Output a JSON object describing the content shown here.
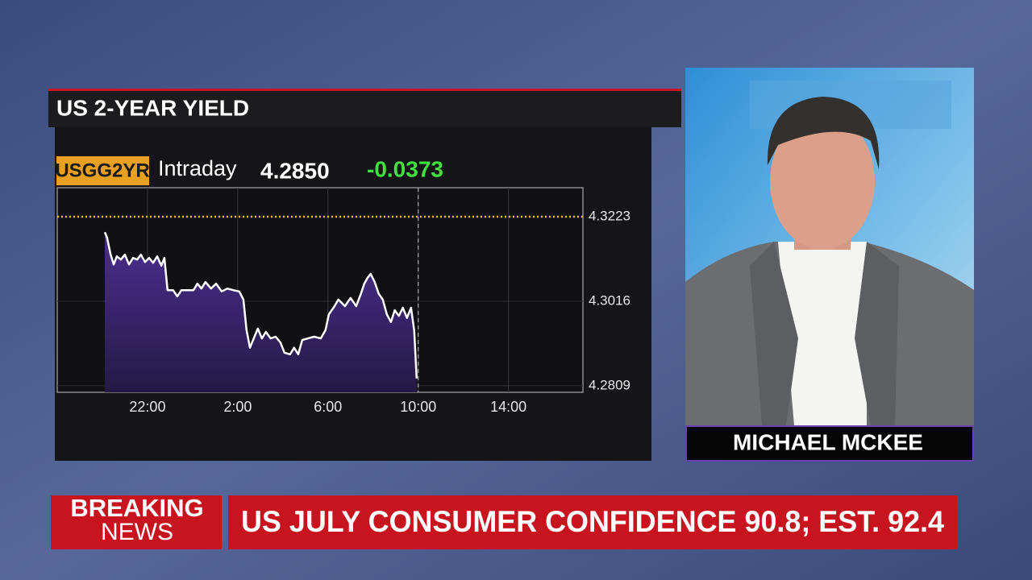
{
  "chart_data": {
    "type": "area",
    "title": "US 2-YEAR YIELD",
    "symbol": "USGG2YR",
    "period": "Intraday",
    "last": "4.2850",
    "change": "-0.0373",
    "color": "#ffffff",
    "fill": "#3d2a7a",
    "change_color": "#3fe03f",
    "reference_line": 4.3223,
    "reference_color": "#e8b820",
    "now_line": 34,
    "grid": true,
    "xlim": [
      18,
      41.3
    ],
    "xticks": [
      {
        "value": 22,
        "label": "22:00"
      },
      {
        "value": 26,
        "label": "2:00"
      },
      {
        "value": 30,
        "label": "6:00"
      },
      {
        "value": 34,
        "label": "10:00"
      },
      {
        "value": 38,
        "label": "14:00"
      }
    ],
    "ylim": [
      4.2793,
      4.3294
    ],
    "yticks": [
      4.2809,
      4.3016,
      4.3223
    ],
    "x": [
      20.11,
      20.21,
      20.36,
      20.5,
      20.64,
      20.82,
      21,
      21.18,
      21.36,
      21.54,
      21.71,
      21.89,
      22.07,
      22.25,
      22.43,
      22.61,
      22.75,
      22.89,
      23.14,
      23.32,
      23.5,
      23.75,
      24.04,
      24.21,
      24.39,
      24.57,
      24.82,
      25.04,
      25.29,
      25.54,
      25.82,
      26.07,
      26.25,
      26.39,
      26.54,
      26.71,
      26.89,
      27.07,
      27.25,
      27.46,
      27.68,
      27.89,
      28.07,
      28.32,
      28.5,
      28.68,
      28.86,
      29.11,
      29.39,
      29.68,
      29.89,
      30.04,
      30.29,
      30.46,
      30.75,
      31,
      31.25,
      31.46,
      31.61,
      31.75,
      31.89,
      32.07,
      32.25,
      32.43,
      32.61,
      32.79,
      32.96,
      33.14,
      33.32,
      33.5,
      33.68,
      33.82,
      33.93
    ],
    "values": [
      4.3185,
      4.3172,
      4.3132,
      4.3106,
      4.3126,
      4.3118,
      4.313,
      4.3106,
      4.3122,
      4.3118,
      4.313,
      4.3112,
      4.3122,
      4.311,
      4.3126,
      4.3103,
      4.3122,
      4.3043,
      4.3043,
      4.3028,
      4.3043,
      4.3043,
      4.3043,
      4.3059,
      4.3047,
      4.3063,
      4.3047,
      4.3059,
      4.304,
      4.3047,
      4.3043,
      4.304,
      4.302,
      4.2945,
      4.2902,
      4.2925,
      4.2949,
      4.2925,
      4.2941,
      4.2925,
      4.2929,
      4.2915,
      4.289,
      4.2886,
      4.2902,
      4.2886,
      4.2921,
      4.2925,
      4.2929,
      4.2925,
      4.2945,
      4.2984,
      4.3004,
      4.302,
      4.3004,
      4.3024,
      4.3004,
      4.3034,
      4.3059,
      4.3073,
      4.3083,
      4.3063,
      4.3034,
      4.302,
      4.2984,
      4.2965,
      4.2994,
      4.298,
      4.3,
      4.2975,
      4.3,
      4.2945,
      4.2827
    ]
  },
  "presenter": {
    "name": "MICHAEL MCKEE"
  },
  "ticker": {
    "label_top": "BREAKING",
    "label_bottom": "NEWS",
    "headline": "US JULY CONSUMER CONFIDENCE 90.8; EST. 92.4"
  }
}
